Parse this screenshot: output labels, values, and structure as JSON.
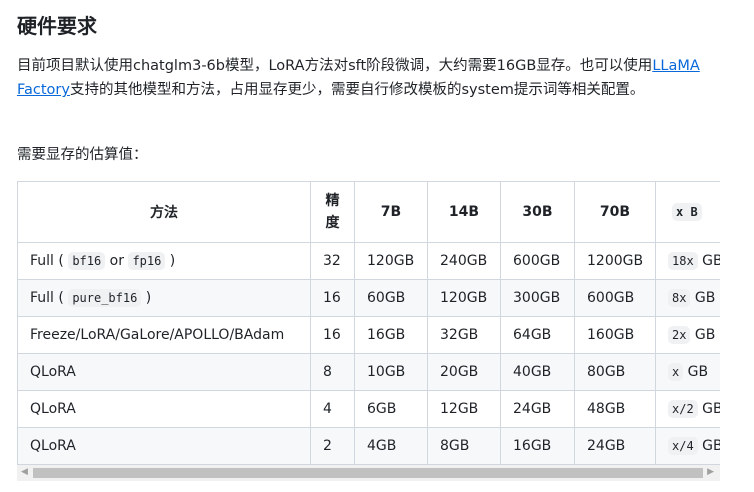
{
  "title": "硬件要求",
  "intro_before": "目前项目默认使用chatglm3-6b模型，LoRA方法对sft阶段微调，大约需要16GB显存。也可以使用",
  "link": "LLaMA Factory",
  "intro_after": "支持的其他模型和方法，占用显存更少，需要自行修改模板的system提示词等相关配置。",
  "estimate_label": "需要显存的估算值：",
  "table": {
    "headers": [
      "方法",
      "精度",
      "7B",
      "14B",
      "30B",
      "70B",
      "x B"
    ],
    "rows": [
      {
        "method": "Full ( bf16 or fp16 )",
        "precision": "32",
        "v": [
          "120GB",
          "240GB",
          "600GB",
          "1200GB"
        ],
        "x": "18x GB"
      },
      {
        "method": "Full ( pure_bf16 )",
        "precision": "16",
        "v": [
          "60GB",
          "120GB",
          "300GB",
          "600GB"
        ],
        "x": "8x GB"
      },
      {
        "method": "Freeze/LoRA/GaLore/APOLLO/BAdam",
        "precision": "16",
        "v": [
          "16GB",
          "32GB",
          "64GB",
          "160GB"
        ],
        "x": "2x GB"
      },
      {
        "method": "QLoRA",
        "precision": "8",
        "v": [
          "10GB",
          "20GB",
          "40GB",
          "80GB"
        ],
        "x": "x GB"
      },
      {
        "method": "QLoRA",
        "precision": "4",
        "v": [
          "6GB",
          "12GB",
          "24GB",
          "48GB"
        ],
        "x": "x/2 GB"
      },
      {
        "method": "QLoRA",
        "precision": "2",
        "v": [
          "4GB",
          "8GB",
          "16GB",
          "24GB"
        ],
        "x": "x/4 GB"
      }
    ]
  }
}
